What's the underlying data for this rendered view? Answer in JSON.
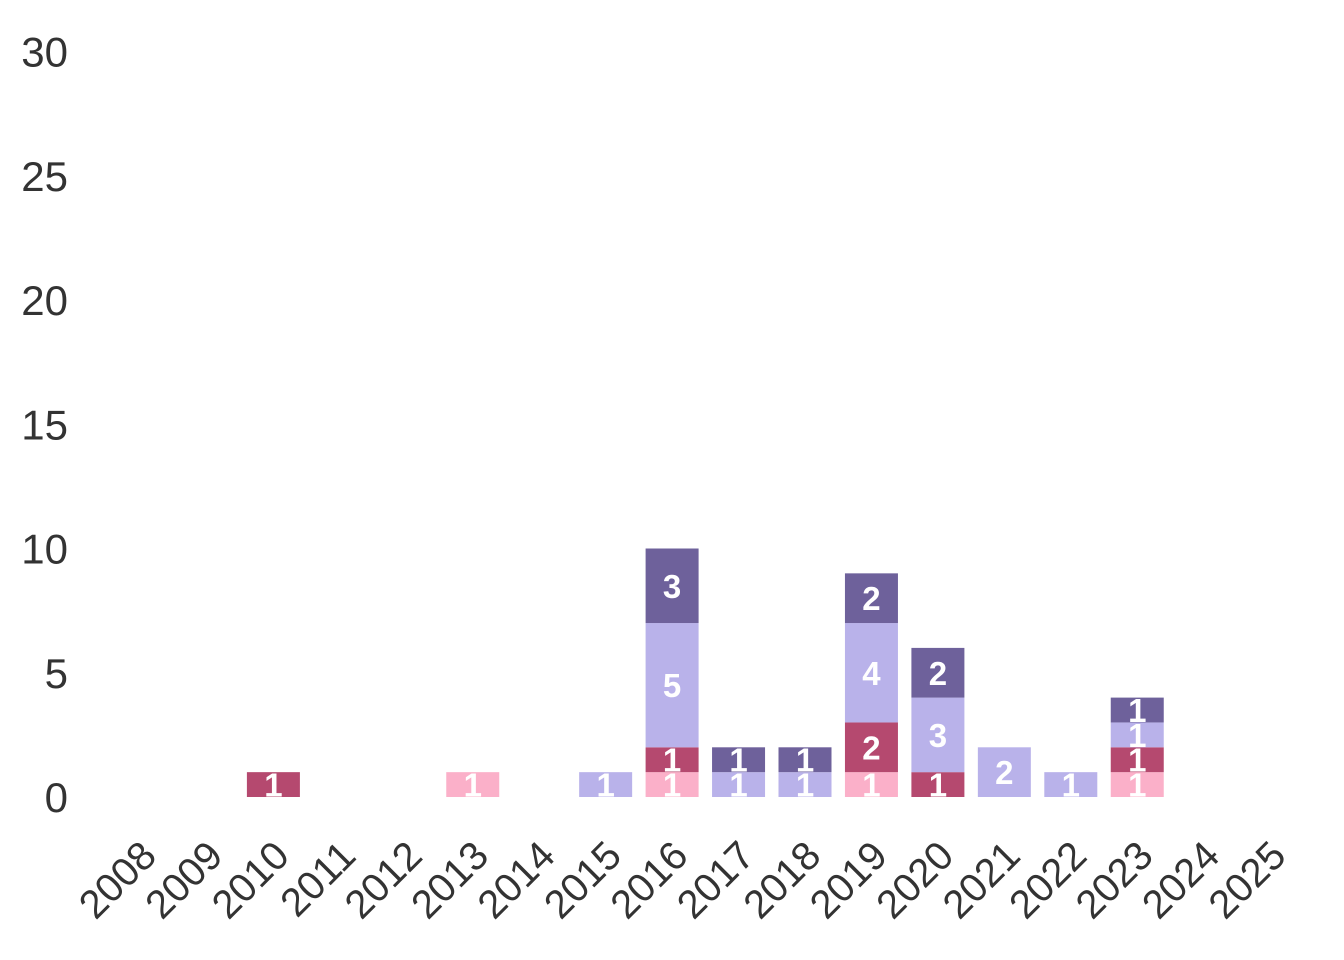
{
  "chart_data": {
    "type": "bar",
    "stacked": true,
    "categories": [
      "2008",
      "2009",
      "2010",
      "2011",
      "2012",
      "2013",
      "2014",
      "2015",
      "2016",
      "2017",
      "2018",
      "2019",
      "2020",
      "2021",
      "2022",
      "2023",
      "2024",
      "2025"
    ],
    "series": [
      {
        "color": "#fbb0c9",
        "values": [
          0,
          0,
          0,
          0,
          0,
          1,
          0,
          0,
          1,
          0,
          0,
          1,
          0,
          0,
          0,
          1,
          0,
          0
        ]
      },
      {
        "color": "#b5496f",
        "values": [
          0,
          0,
          1,
          0,
          0,
          0,
          0,
          0,
          1,
          0,
          0,
          2,
          1,
          0,
          0,
          1,
          0,
          0
        ]
      },
      {
        "color": "#b9b2ea",
        "values": [
          0,
          0,
          0,
          0,
          0,
          0,
          0,
          1,
          5,
          1,
          1,
          4,
          3,
          2,
          1,
          1,
          0,
          0
        ]
      },
      {
        "color": "#6e619b",
        "values": [
          0,
          0,
          0,
          0,
          0,
          0,
          0,
          0,
          3,
          1,
          1,
          2,
          2,
          0,
          0,
          1,
          0,
          0
        ]
      }
    ],
    "yticks": [
      "0",
      "5",
      "10",
      "15",
      "20",
      "25",
      "30"
    ],
    "ylim": [
      0,
      30
    ],
    "grid": false,
    "legend": "none"
  }
}
